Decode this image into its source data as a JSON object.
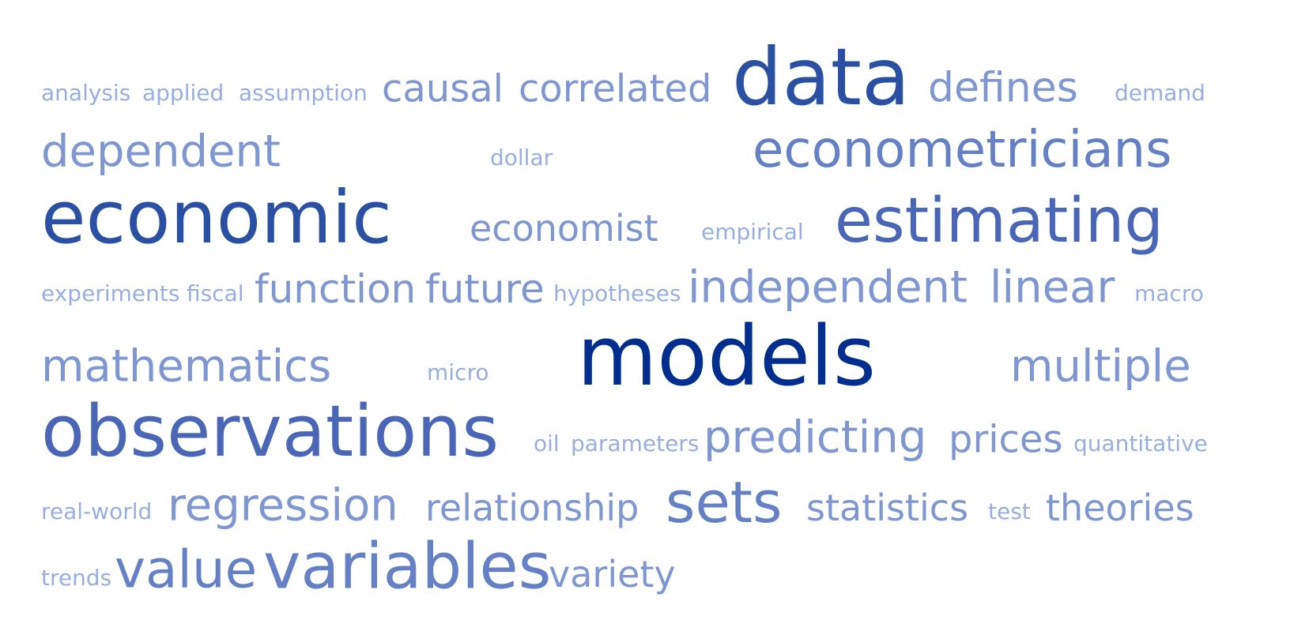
{
  "cloud": {
    "palette": {
      "darkest": "#002E8E",
      "dark": "#2A50A3",
      "medium": "#4967B6",
      "light": "#6680C6",
      "lighter": "#8096D2",
      "lightest": "#99AEE0"
    },
    "words": [
      {
        "text": "analysis",
        "tone": "lightest"
      },
      {
        "text": "applied",
        "tone": "lightest"
      },
      {
        "text": "assumption",
        "tone": "lightest"
      },
      {
        "text": "causal",
        "tone": "lighter"
      },
      {
        "text": "correlated",
        "tone": "lighter"
      },
      {
        "text": "data",
        "tone": "dark"
      },
      {
        "text": "defines",
        "tone": "lighter"
      },
      {
        "text": "demand",
        "tone": "lightest"
      },
      {
        "text": "dependent",
        "tone": "lighter"
      },
      {
        "text": "dollar",
        "tone": "lightest"
      },
      {
        "text": "econometricians",
        "tone": "light"
      },
      {
        "text": "economic",
        "tone": "dark"
      },
      {
        "text": "economist",
        "tone": "lighter"
      },
      {
        "text": "empirical",
        "tone": "lightest"
      },
      {
        "text": "estimating",
        "tone": "medium"
      },
      {
        "text": "experiments",
        "tone": "lightest"
      },
      {
        "text": "fiscal",
        "tone": "lightest"
      },
      {
        "text": "function",
        "tone": "lighter"
      },
      {
        "text": "future",
        "tone": "lighter"
      },
      {
        "text": "hypotheses",
        "tone": "lightest"
      },
      {
        "text": "independent",
        "tone": "lighter"
      },
      {
        "text": "linear",
        "tone": "lighter"
      },
      {
        "text": "macro",
        "tone": "lightest"
      },
      {
        "text": "mathematics",
        "tone": "lighter"
      },
      {
        "text": "micro",
        "tone": "lightest"
      },
      {
        "text": "models",
        "tone": "darkest"
      },
      {
        "text": "multiple",
        "tone": "lighter"
      },
      {
        "text": "observations",
        "tone": "medium"
      },
      {
        "text": "oil",
        "tone": "lightest"
      },
      {
        "text": "parameters",
        "tone": "lightest"
      },
      {
        "text": "predicting",
        "tone": "lighter"
      },
      {
        "text": "prices",
        "tone": "lighter"
      },
      {
        "text": "quantitative",
        "tone": "lightest"
      },
      {
        "text": "real-world",
        "tone": "lightest"
      },
      {
        "text": "regression",
        "tone": "lighter"
      },
      {
        "text": "relationship",
        "tone": "lighter"
      },
      {
        "text": "sets",
        "tone": "light"
      },
      {
        "text": "statistics",
        "tone": "lighter"
      },
      {
        "text": "test",
        "tone": "lightest"
      },
      {
        "text": "theories",
        "tone": "lighter"
      },
      {
        "text": "trends",
        "tone": "lightest"
      },
      {
        "text": "value",
        "tone": "light"
      },
      {
        "text": "variables",
        "tone": "light"
      },
      {
        "text": "variety",
        "tone": "lighter"
      }
    ]
  }
}
